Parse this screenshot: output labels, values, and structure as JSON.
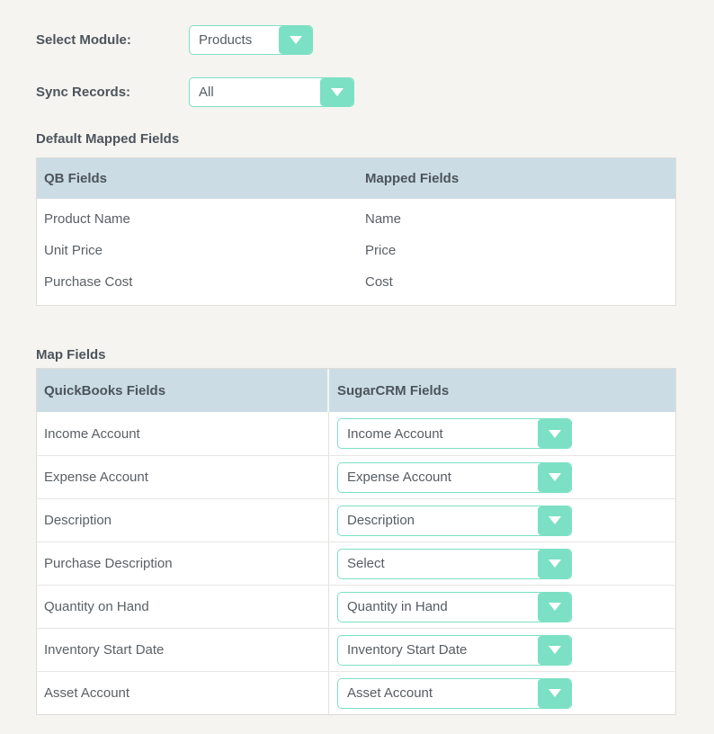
{
  "colors": {
    "accent_teal": "#7ce0c4",
    "table_header_bg": "#cbdce4",
    "page_bg": "#f5f4f1",
    "text": "#565c62"
  },
  "form": {
    "module": {
      "label": "Select Module:",
      "value": "Products"
    },
    "sync": {
      "label": "Sync Records:",
      "value": "All"
    }
  },
  "default_mapped": {
    "title": "Default Mapped Fields",
    "columns": {
      "qb": "QB Fields",
      "mapped": "Mapped Fields"
    },
    "rows": [
      {
        "qb": "Product Name",
        "mapped": "Name"
      },
      {
        "qb": "Unit Price",
        "mapped": "Price"
      },
      {
        "qb": "Purchase Cost",
        "mapped": "Cost"
      }
    ]
  },
  "map_fields": {
    "title": "Map Fields",
    "columns": {
      "qb": "QuickBooks Fields",
      "sugar": "SugarCRM Fields"
    },
    "rows": [
      {
        "qb": "Income Account",
        "sugar": "Income Account"
      },
      {
        "qb": "Expense Account",
        "sugar": "Expense Account"
      },
      {
        "qb": "Description",
        "sugar": "Description"
      },
      {
        "qb": "Purchase Description",
        "sugar": "Select"
      },
      {
        "qb": "Quantity on Hand",
        "sugar": "Quantity in Hand"
      },
      {
        "qb": "Inventory Start Date",
        "sugar": "Inventory Start Date"
      },
      {
        "qb": "Asset Account",
        "sugar": "Asset Account"
      }
    ]
  }
}
